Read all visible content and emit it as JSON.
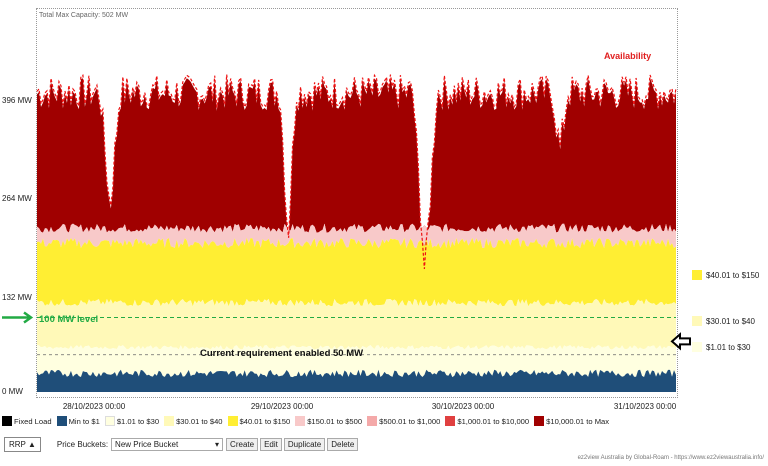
{
  "header": {
    "capacity_label": "Total Max Capacity: 502 MW"
  },
  "chart_data": {
    "type": "area",
    "y_axis": {
      "ticks": [
        "0 MW",
        "132 MW",
        "264 MW",
        "396 MW"
      ],
      "range_mw": [
        0,
        502
      ]
    },
    "x_axis": {
      "ticks": [
        "28/10/2023 00:00",
        "29/10/2023 00:00",
        "30/10/2023 00:00",
        "31/10/2023 00:00"
      ]
    },
    "series_labels": {
      "availability": "Availability"
    },
    "annotations": {
      "level_100": "100 MW level",
      "current_requirement": "Current requirement  enabled 50 MW"
    },
    "bands_mw": {
      "min_to_1": 25,
      "r1_to_30": 60,
      "r30_to_40": 120,
      "r40_to_150": 200,
      "r150_to_500": 220,
      "availability_typical": 400
    }
  },
  "side_legend": [
    {
      "label": "$40.01 to $150",
      "color": "#ffee33"
    },
    {
      "label": "$30.01 to $40",
      "color": "#fff9b8"
    },
    {
      "label": "$1.01 to $30",
      "color": "#ffffe0"
    }
  ],
  "bottom_legend": [
    {
      "label": "Fixed Load",
      "color": "#000000"
    },
    {
      "label": "Min to $1",
      "color": "#1f4e79"
    },
    {
      "label": "$1.01 to $30",
      "color": "#ffffe0"
    },
    {
      "label": "$30.01 to $40",
      "color": "#fff9b8"
    },
    {
      "label": "$40.01 to $150",
      "color": "#ffee33"
    },
    {
      "label": "$150.01 to $500",
      "color": "#f8c9c9"
    },
    {
      "label": "$500.01 to $1,000",
      "color": "#f4a9a9"
    },
    {
      "label": "$1,000.01 to $10,000",
      "color": "#e04040"
    },
    {
      "label": "$10,000.01 to Max",
      "color": "#a00000"
    }
  ],
  "colors": {
    "availability_line": "#ee1111",
    "top_band": "#a00000",
    "pink_band": "#f8c9c9",
    "yellow_band": "#ffee33",
    "light_band": "#fff9b8",
    "pale_band": "#ffffe0",
    "blue_band": "#1f4e79",
    "annotation_green": "#22aa44"
  },
  "toolbar": {
    "rrp_label": "RRP",
    "price_buckets_label": "Price Buckets:",
    "bucket_selected": "New Price Bucket",
    "create": "Create",
    "edit": "Edit",
    "duplicate": "Duplicate",
    "delete": "Delete"
  },
  "footer": {
    "credit": "ez2view Australia by Global-Roam - https://www.ez2viewaustralia.info/"
  }
}
